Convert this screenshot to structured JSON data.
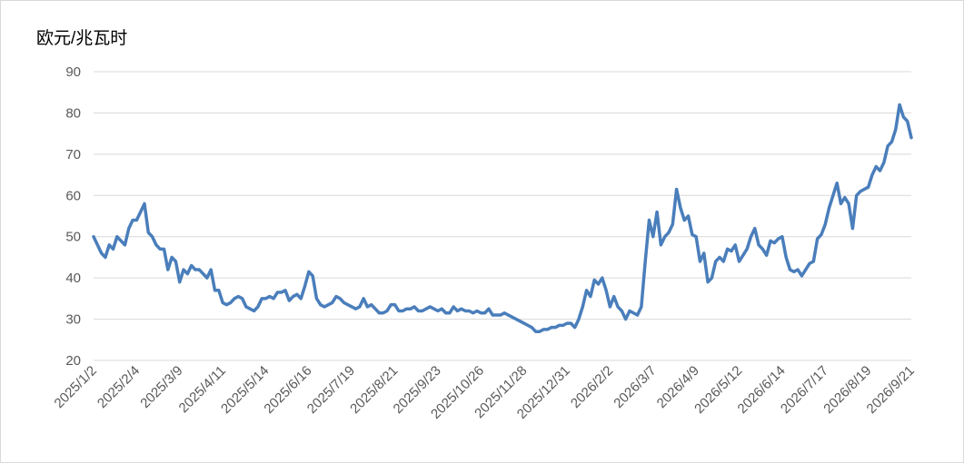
{
  "chart_data": {
    "type": "line",
    "y_label": "欧元/兆瓦时",
    "categories": [
      "2025/1/2",
      null,
      null,
      null,
      null,
      null,
      null,
      null,
      null,
      null,
      null,
      "2025/2/4",
      null,
      null,
      null,
      null,
      null,
      null,
      null,
      null,
      null,
      null,
      "2025/3/9",
      null,
      null,
      null,
      null,
      null,
      null,
      null,
      null,
      null,
      null,
      "2025/4/11",
      null,
      null,
      null,
      null,
      null,
      null,
      null,
      null,
      null,
      null,
      "2025/5/14",
      null,
      null,
      null,
      null,
      null,
      null,
      null,
      null,
      null,
      null,
      "2025/6/16",
      null,
      null,
      null,
      null,
      null,
      null,
      null,
      null,
      null,
      null,
      "2025/7/19",
      null,
      null,
      null,
      null,
      null,
      null,
      null,
      null,
      null,
      null,
      "2025/8/21",
      null,
      null,
      null,
      null,
      null,
      null,
      null,
      null,
      null,
      null,
      "2025/9/23",
      null,
      null,
      null,
      null,
      null,
      null,
      null,
      null,
      null,
      null,
      "2025/10/26",
      null,
      null,
      null,
      null,
      null,
      null,
      null,
      null,
      null,
      null,
      "2025/11/28",
      null,
      null,
      null,
      null,
      null,
      null,
      null,
      null,
      null,
      null,
      "2025/12/31",
      null,
      null,
      null,
      null,
      null,
      null,
      null,
      null,
      null,
      null,
      "2026/2/2",
      null,
      null,
      null,
      null,
      null,
      null,
      null,
      null,
      null,
      null,
      "2026/3/7",
      null,
      null,
      null,
      null,
      null,
      null,
      null,
      null,
      null,
      null,
      "2026/4/9",
      null,
      null,
      null,
      null,
      null,
      null,
      null,
      null,
      null,
      null,
      "2026/5/12",
      null,
      null,
      null,
      null,
      null,
      null,
      null,
      null,
      null,
      null,
      "2026/6/14",
      null,
      null,
      null,
      null,
      null,
      null,
      null,
      null,
      null,
      null,
      "2026/7/17",
      null,
      null,
      null,
      null,
      null,
      null,
      null,
      null,
      null,
      null,
      "2026/8/19",
      null,
      null,
      null,
      null,
      null,
      null,
      null,
      null,
      null,
      null,
      "2026/9/21"
    ],
    "series": [
      {
        "color": "#4a7ebb",
        "values": [
          50,
          48,
          46,
          45,
          48,
          47,
          50,
          49,
          48,
          52,
          54,
          54,
          56,
          58,
          51,
          50,
          48,
          47,
          47,
          42,
          45,
          44,
          39,
          42,
          41,
          43,
          42,
          42,
          41,
          40,
          42,
          37,
          37,
          34,
          33.5,
          34,
          35,
          35.5,
          35,
          33,
          32.5,
          32,
          33,
          35,
          35,
          35.5,
          35,
          36.5,
          36.5,
          37,
          34.5,
          35.5,
          36,
          35,
          38,
          41.5,
          40.5,
          35,
          33.5,
          33,
          33.5,
          34,
          35.5,
          35,
          34,
          33.5,
          33,
          32.5,
          33,
          35,
          33,
          33.5,
          32.5,
          31.5,
          31.5,
          32,
          33.5,
          33.5,
          32,
          32,
          32.5,
          32.5,
          33,
          32,
          32,
          32.5,
          33,
          32.5,
          32,
          32.5,
          31.5,
          31.5,
          33,
          32,
          32.5,
          32,
          32,
          31.5,
          32,
          31.5,
          31.5,
          32.5,
          31,
          31,
          31,
          31.5,
          31,
          30.5,
          30,
          29.5,
          29,
          28.5,
          28,
          27,
          27,
          27.5,
          27.5,
          28,
          28,
          28.5,
          28.5,
          29,
          29,
          28,
          30,
          33,
          37,
          35.5,
          39.5,
          38.5,
          40,
          37,
          33,
          35.5,
          33,
          32,
          30,
          32,
          31.5,
          31,
          33,
          44,
          54,
          50,
          56,
          48,
          50,
          51,
          53,
          61.5,
          57,
          54,
          55,
          50.5,
          50,
          44,
          46,
          39,
          40,
          44,
          45,
          44,
          47,
          46.5,
          48,
          44,
          45.5,
          47,
          50,
          52,
          48,
          47,
          45.5,
          49,
          48.5,
          49.5,
          50,
          45,
          42,
          41.5,
          42,
          40.5,
          42,
          43.5,
          44,
          49.5,
          50.5,
          53,
          57,
          60,
          63,
          58,
          59.5,
          58,
          52,
          60,
          61,
          61.5,
          62,
          65,
          67,
          66,
          68,
          72,
          73,
          76,
          82,
          79,
          78,
          74
        ]
      }
    ],
    "ylim": [
      20,
      90
    ],
    "yticks": [
      20,
      30,
      40,
      50,
      60,
      70,
      80,
      90
    ],
    "grid": true
  }
}
